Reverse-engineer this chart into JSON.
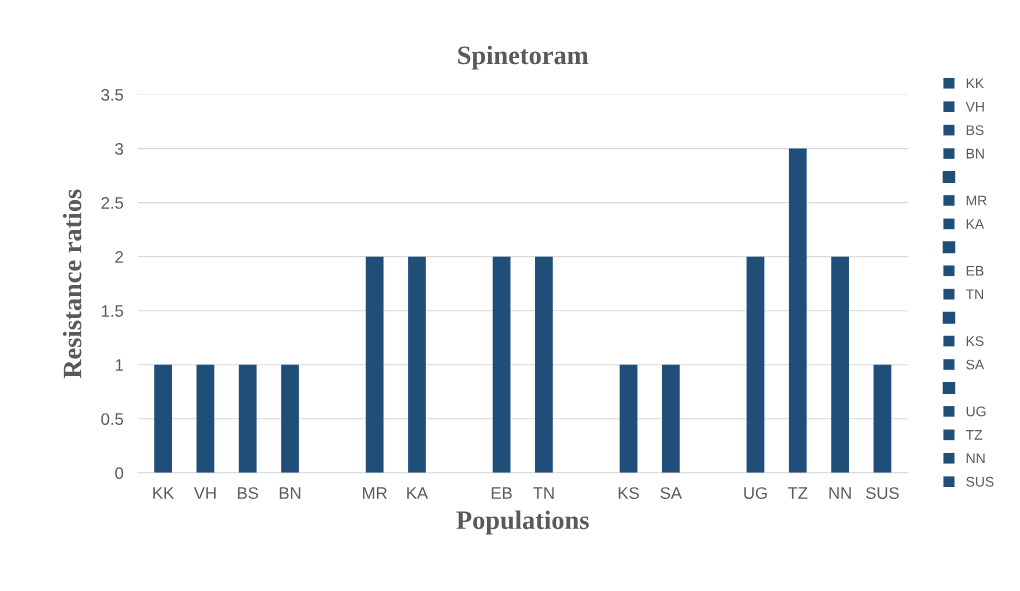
{
  "chart_data": {
    "type": "bar",
    "title": "Spinetoram",
    "xlabel": "Populations",
    "ylabel": "Resistance ratios",
    "categories": [
      "KK",
      "VH",
      "BS",
      "BN",
      null,
      "MR",
      "KA",
      null,
      "EB",
      "TN",
      null,
      "KS",
      "SA",
      null,
      "UG",
      "TZ",
      "NN",
      "SUS"
    ],
    "stacked": true,
    "series": [
      {
        "name": "KK",
        "color": "#1f4e79",
        "values": [
          1,
          null,
          null,
          null,
          null,
          null,
          null,
          null,
          null,
          null,
          null,
          null,
          null,
          null,
          null,
          null,
          null,
          null
        ]
      },
      {
        "name": "VH",
        "color": "#1f4e79",
        "values": [
          null,
          1,
          null,
          null,
          null,
          null,
          null,
          null,
          null,
          null,
          null,
          null,
          null,
          null,
          null,
          null,
          null,
          null
        ]
      },
      {
        "name": "BS",
        "color": "#1f4e79",
        "values": [
          null,
          null,
          1,
          null,
          null,
          null,
          null,
          null,
          null,
          null,
          null,
          null,
          null,
          null,
          null,
          null,
          null,
          null
        ]
      },
      {
        "name": "BN",
        "color": "#1f4e79",
        "values": [
          null,
          null,
          null,
          1,
          null,
          null,
          null,
          null,
          null,
          null,
          null,
          null,
          null,
          null,
          null,
          null,
          null,
          null
        ]
      },
      {
        "color": "#1f4e79",
        "values": [
          null,
          null,
          null,
          null,
          null,
          null,
          null,
          null,
          null,
          null,
          null,
          null,
          null,
          null,
          null,
          null,
          null,
          null
        ]
      },
      {
        "name": "MR",
        "color": "#1f4e79",
        "values": [
          null,
          null,
          null,
          null,
          null,
          2,
          null,
          null,
          null,
          null,
          null,
          null,
          null,
          null,
          null,
          null,
          null,
          null
        ]
      },
      {
        "name": "KA",
        "color": "#1f4e79",
        "values": [
          null,
          null,
          null,
          null,
          null,
          null,
          2,
          null,
          null,
          null,
          null,
          null,
          null,
          null,
          null,
          null,
          null,
          null
        ]
      },
      {
        "color": "#1f4e79",
        "values": [
          null,
          null,
          null,
          null,
          null,
          null,
          null,
          null,
          null,
          null,
          null,
          null,
          null,
          null,
          null,
          null,
          null,
          null
        ]
      },
      {
        "name": "EB",
        "color": "#1f4e79",
        "values": [
          null,
          null,
          null,
          null,
          null,
          null,
          null,
          null,
          2,
          null,
          null,
          null,
          null,
          null,
          null,
          null,
          null,
          null
        ]
      },
      {
        "name": "TN",
        "color": "#1f4e79",
        "values": [
          null,
          null,
          null,
          null,
          null,
          null,
          null,
          null,
          null,
          2,
          null,
          null,
          null,
          null,
          null,
          null,
          null,
          null
        ]
      },
      {
        "color": "#1f4e79",
        "values": [
          null,
          null,
          null,
          null,
          null,
          null,
          null,
          null,
          null,
          null,
          null,
          null,
          null,
          null,
          null,
          null,
          null,
          null
        ]
      },
      {
        "name": "KS",
        "color": "#1f4e79",
        "values": [
          null,
          null,
          null,
          null,
          null,
          null,
          null,
          null,
          null,
          null,
          null,
          1,
          null,
          null,
          null,
          null,
          null,
          null
        ]
      },
      {
        "name": "SA",
        "color": "#1f4e79",
        "values": [
          null,
          null,
          null,
          null,
          null,
          null,
          null,
          null,
          null,
          null,
          null,
          null,
          1,
          null,
          null,
          null,
          null,
          null
        ]
      },
      {
        "color": "#1f4e79",
        "values": [
          null,
          null,
          null,
          null,
          null,
          null,
          null,
          null,
          null,
          null,
          null,
          null,
          null,
          null,
          null,
          null,
          null,
          null
        ]
      },
      {
        "name": "UG",
        "color": "#1f4e79",
        "values": [
          null,
          null,
          null,
          null,
          null,
          null,
          null,
          null,
          null,
          null,
          null,
          null,
          null,
          null,
          2,
          null,
          null,
          null
        ]
      },
      {
        "name": "TZ",
        "color": "#1f4e79",
        "values": [
          null,
          null,
          null,
          null,
          null,
          null,
          null,
          null,
          null,
          null,
          null,
          null,
          null,
          null,
          null,
          3,
          null,
          null
        ]
      },
      {
        "name": "NN",
        "color": "#1f4e79",
        "values": [
          null,
          null,
          null,
          null,
          null,
          null,
          null,
          null,
          null,
          null,
          null,
          null,
          null,
          null,
          null,
          null,
          2,
          null
        ]
      },
      {
        "name": "SUS",
        "color": "#1f4e79",
        "values": [
          null,
          null,
          null,
          null,
          null,
          null,
          null,
          null,
          null,
          null,
          null,
          null,
          null,
          null,
          null,
          null,
          null,
          1
        ]
      }
    ],
    "ylim": [
      0,
      3.5
    ],
    "yticks": [
      0,
      0.5,
      1,
      1.5,
      2,
      2.5,
      3,
      3.5
    ],
    "grid": "y",
    "legend": "right"
  }
}
